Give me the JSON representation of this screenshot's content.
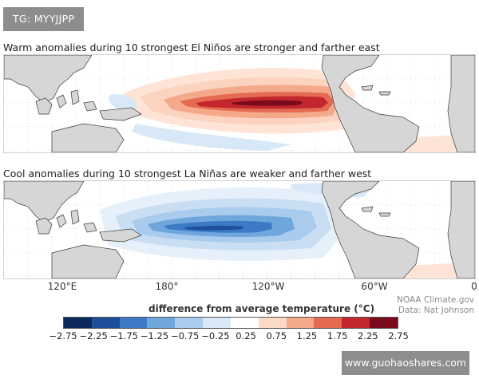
{
  "watermark_top": "TG: MYYJJPP",
  "panel1_title": "Warm anomalies during 10 strongest El Niños are stronger and farther east",
  "panel2_title": "Cool anomalies during 10 strongest La Niñas are weaker and farther west",
  "longitude_labels": [
    "120°E",
    "180°",
    "120°W",
    "60°W",
    "0"
  ],
  "credit_line1": "NOAA Climate.gov",
  "credit_line2": "Data: Nat Johnson",
  "legend_title": "difference from average temperature (°C)",
  "legend_ticks": [
    "−2.75",
    "−2.25",
    "−1.75",
    "−1.25",
    "−0.75",
    "−0.25",
    "0.25",
    "0.75",
    "1.25",
    "1.75",
    "2.25",
    "2.75"
  ],
  "legend_colors": [
    "#0b2a5b",
    "#1f4f9a",
    "#3c7ac6",
    "#6fa6dc",
    "#a8cbee",
    "#d8e8f7",
    "#ffffff",
    "#fbd9c7",
    "#f4a98a",
    "#e56a52",
    "#c1272d",
    "#7a0a1c"
  ],
  "colors": {
    "land": "#d6d6d6",
    "coast": "#3a3a3a",
    "grid": "#cccccc"
  },
  "watermark_bottom": "www.guohaoshares.com"
}
